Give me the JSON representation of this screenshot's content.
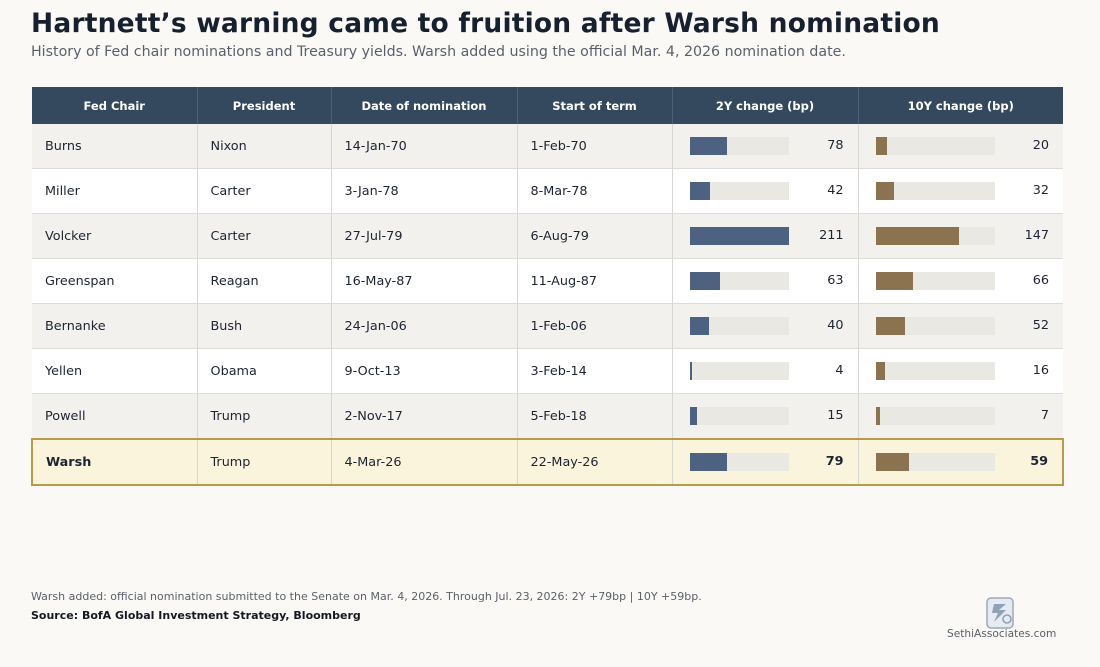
{
  "title": "Hartnett’s warning came to fruition after Warsh nomination",
  "subtitle": "History of Fed chair nominations and Treasury yields. Warsh added using the official Mar. 4, 2026 nomination date.",
  "chart_data": {
    "type": "table",
    "columns": [
      "Fed Chair",
      "President",
      "Date of nomination",
      "Start of term",
      "2Y change (bp)",
      "10Y change (bp)"
    ],
    "rows": [
      {
        "chair": "Burns",
        "president": "Nixon",
        "nominated": "14-Jan-70",
        "start": "1-Feb-70",
        "y2": 78,
        "y10": 20
      },
      {
        "chair": "Miller",
        "president": "Carter",
        "nominated": "3-Jan-78",
        "start": "8-Mar-78",
        "y2": 42,
        "y10": 32
      },
      {
        "chair": "Volcker",
        "president": "Carter",
        "nominated": "27-Jul-79",
        "start": "6-Aug-79",
        "y2": 211,
        "y10": 147
      },
      {
        "chair": "Greenspan",
        "president": "Reagan",
        "nominated": "16-May-87",
        "start": "11-Aug-87",
        "y2": 63,
        "y10": 66
      },
      {
        "chair": "Bernanke",
        "president": "Bush",
        "nominated": "24-Jan-06",
        "start": "1-Feb-06",
        "y2": 40,
        "y10": 52
      },
      {
        "chair": "Yellen",
        "president": "Obama",
        "nominated": "9-Oct-13",
        "start": "3-Feb-14",
        "y2": 4,
        "y10": 16
      },
      {
        "chair": "Powell",
        "president": "Trump",
        "nominated": "2-Nov-17",
        "start": "5-Feb-18",
        "y2": 15,
        "y10": 7
      },
      {
        "chair": "Warsh",
        "president": "Trump",
        "nominated": "4-Mar-26",
        "start": "22-May-26",
        "y2": 79,
        "y10": 59,
        "highlight": true
      }
    ],
    "bar_max": {
      "y2": 211,
      "y10": 147
    },
    "colors": {
      "y2_bar": "#4d6280",
      "y10_bar": "#8b7350",
      "header": "#34495e",
      "highlight": "#fbf4dd"
    }
  },
  "footnote": "Warsh added: official nomination submitted to the Senate on Mar. 4, 2026. Through Jul. 23, 2026: 2Y +79bp | 10Y +59bp.",
  "source": "Source: BofA Global Investment Strategy, Bloomberg",
  "brand": "SethiAssociates.com"
}
